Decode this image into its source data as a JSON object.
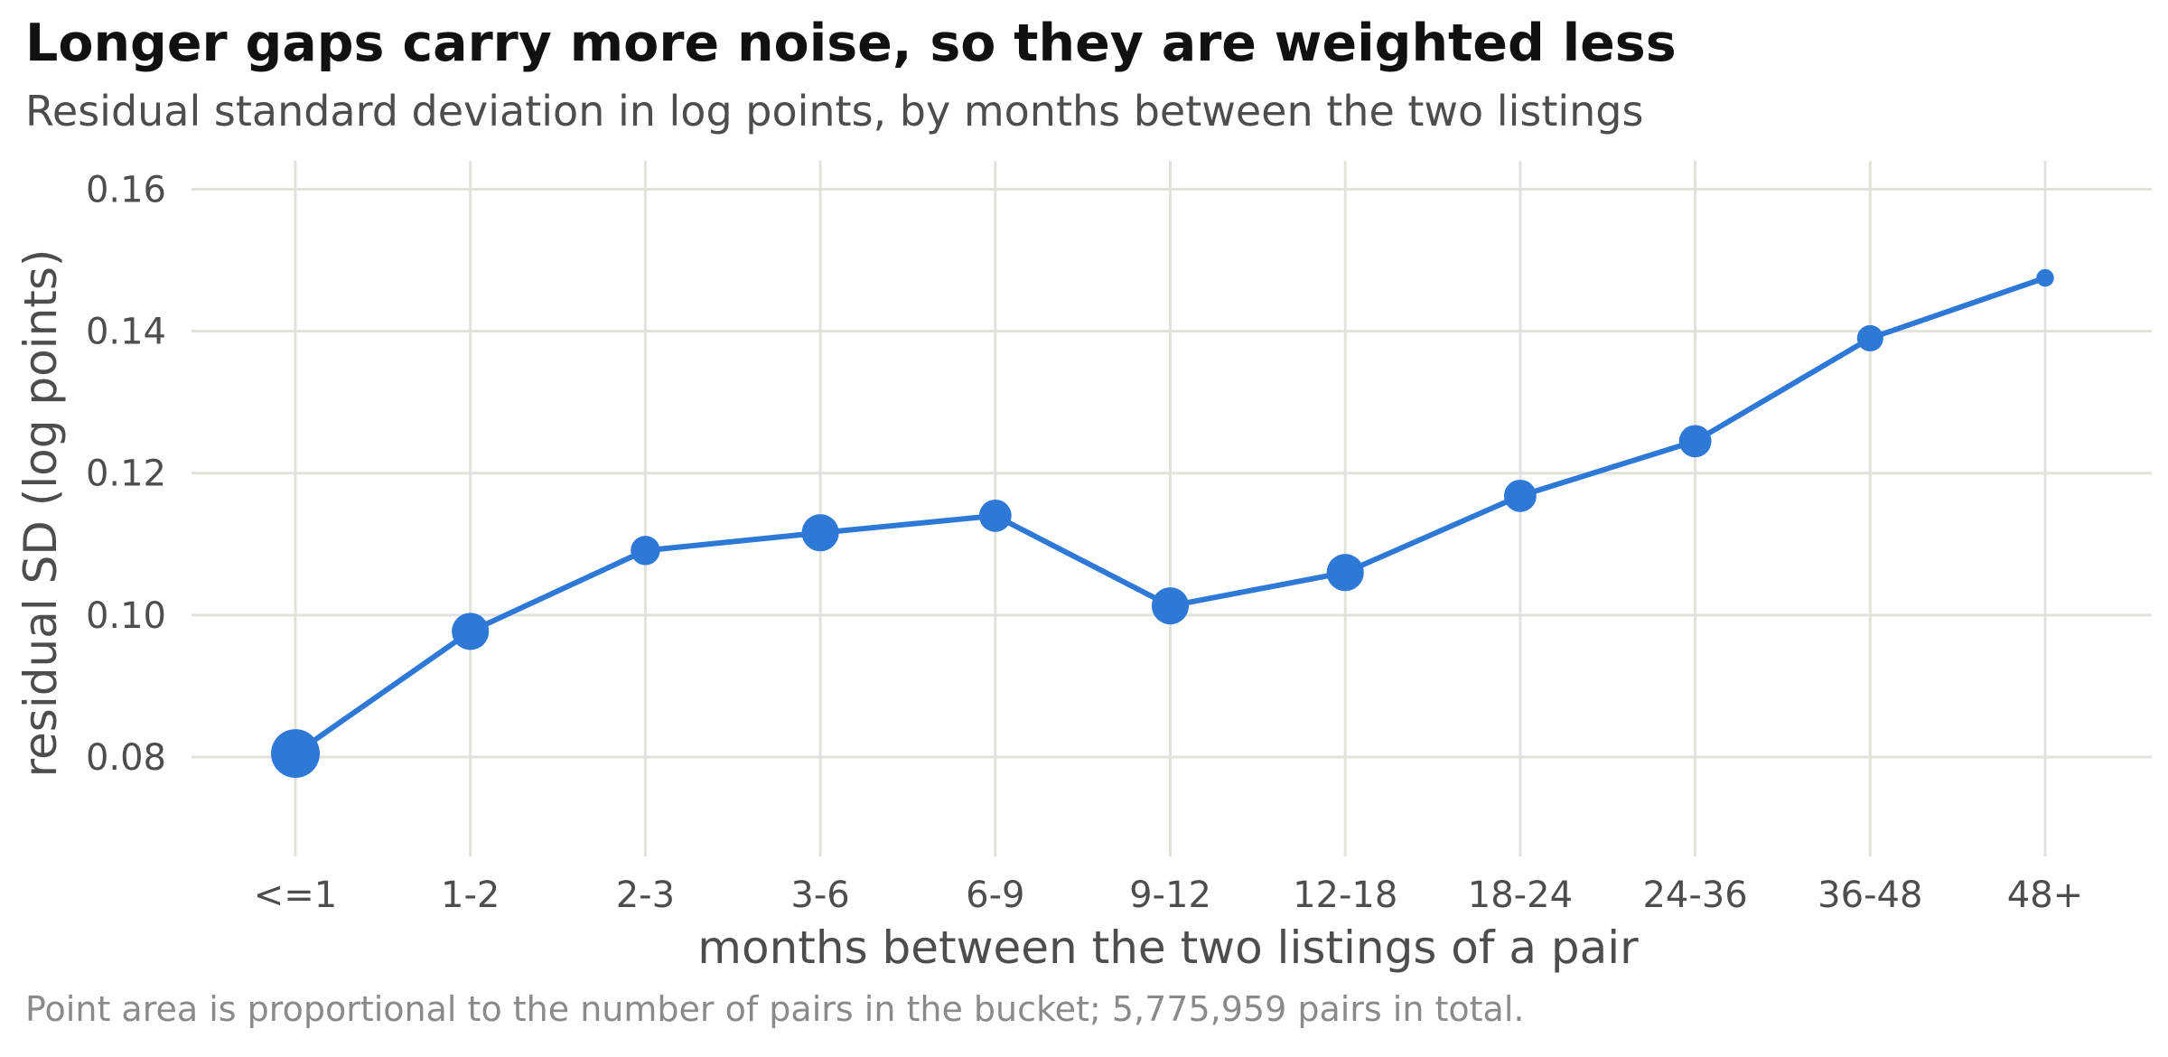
{
  "title": "Longer gaps carry more noise, so they are weighted less",
  "subtitle": "Residual standard deviation in log points, by months between the two listings",
  "caption": "Point area is proportional to the number of pairs in the bucket; 5,775,959 pairs in total.",
  "colors": {
    "line": "#2e78d6",
    "grid": "#e2e2dc",
    "tick_text": "#4d4d4d"
  },
  "chart_data": {
    "type": "line",
    "xlabel": "months between the two listings of a pair",
    "ylabel": "residual SD (log points)",
    "categories": [
      "<=1",
      "1-2",
      "2-3",
      "3-6",
      "6-9",
      "9-12",
      "12-18",
      "18-24",
      "24-36",
      "36-48",
      "48+"
    ],
    "values": [
      0.0805,
      0.0977,
      0.1091,
      0.1116,
      0.114,
      0.1013,
      0.106,
      0.1168,
      0.1245,
      0.139,
      0.1475
    ],
    "point_size_relative": [
      1.0,
      0.58,
      0.36,
      0.58,
      0.44,
      0.58,
      0.58,
      0.44,
      0.44,
      0.29,
      0.13
    ],
    "ylim": [
      0.066,
      0.164
    ],
    "yticks": [
      0.08,
      0.1,
      0.12,
      0.14,
      0.16
    ],
    "ytick_labels": [
      "0.08",
      "0.10",
      "0.12",
      "0.14",
      "0.16"
    ],
    "grid": true,
    "legend": "none"
  }
}
